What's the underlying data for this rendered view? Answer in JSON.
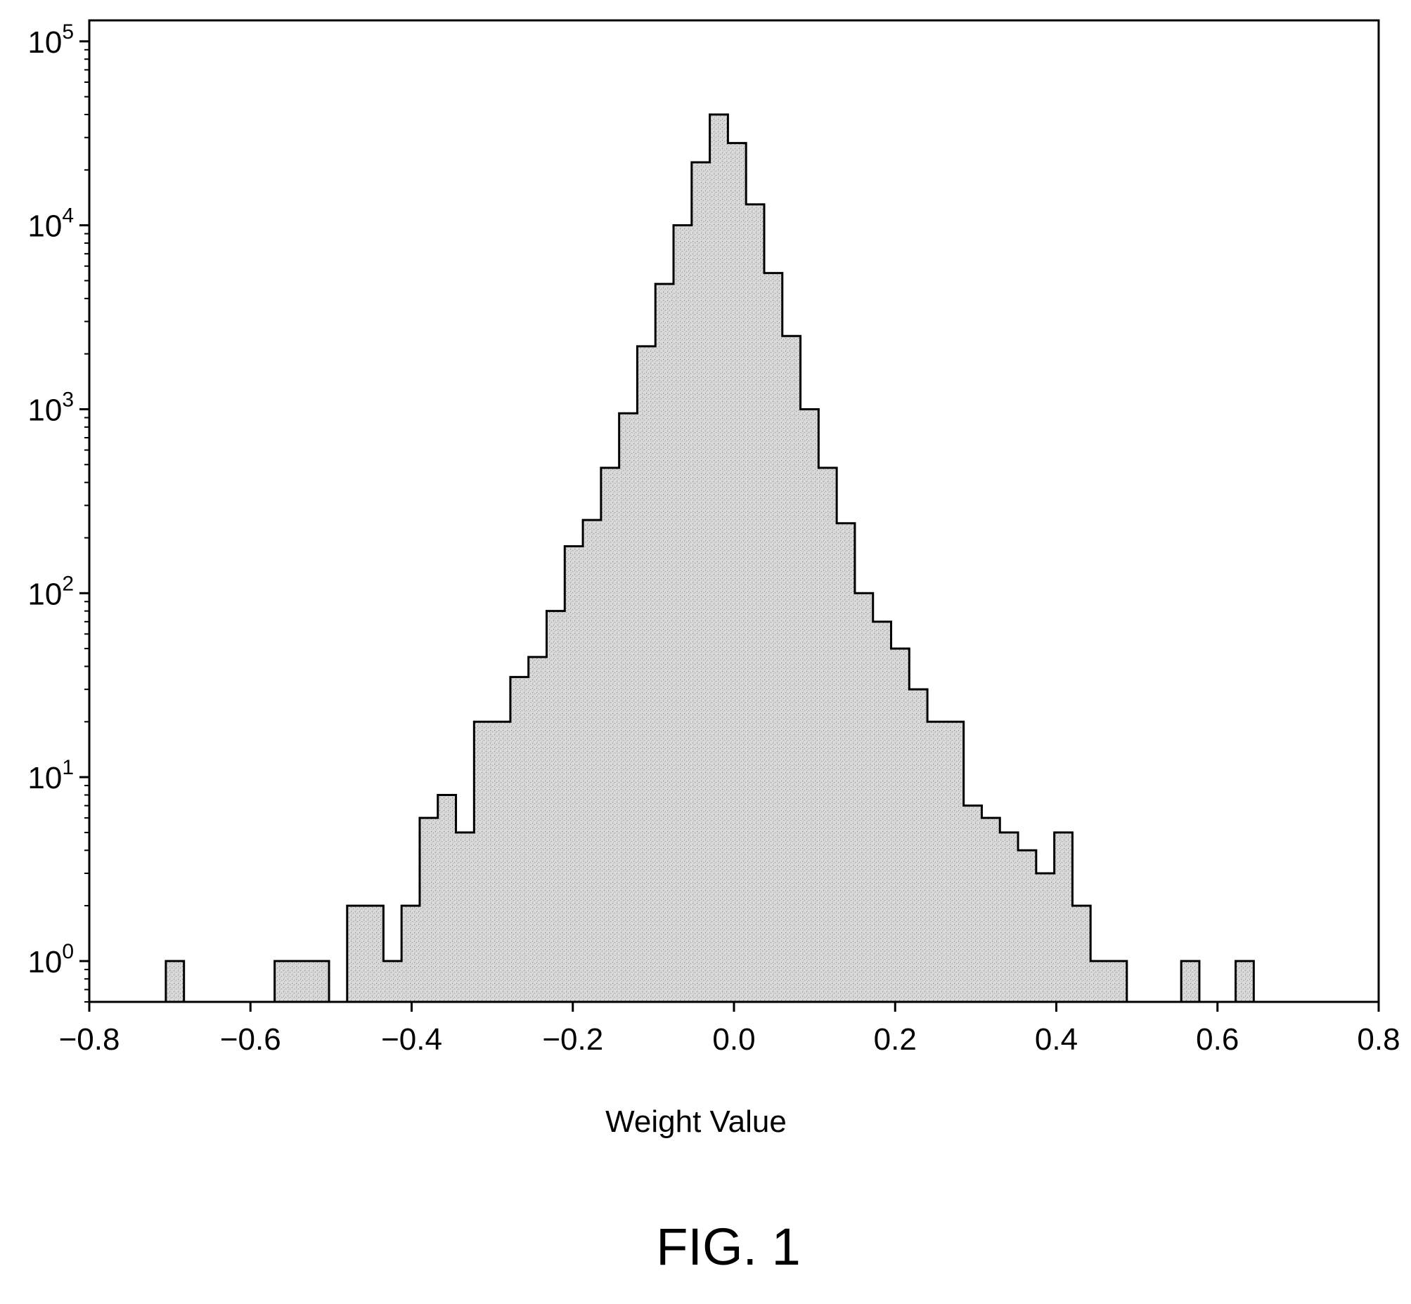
{
  "figure": {
    "caption": "FIG. 1"
  },
  "chart_data": {
    "type": "histogram",
    "title": "",
    "xlabel": "Weight Value",
    "ylabel": "",
    "xlim": [
      -0.8,
      0.8
    ],
    "ylim": [
      0.6,
      130000
    ],
    "yscale": "log",
    "grid": false,
    "legend": "none",
    "fill_color": "#d9d9d9",
    "edge_color": "#000000",
    "x_ticks": [
      {
        "value": -0.8,
        "label": "−0.8"
      },
      {
        "value": -0.6,
        "label": "−0.6"
      },
      {
        "value": -0.4,
        "label": "−0.4"
      },
      {
        "value": -0.2,
        "label": "−0.2"
      },
      {
        "value": 0.0,
        "label": "0.0"
      },
      {
        "value": 0.2,
        "label": "0.2"
      },
      {
        "value": 0.4,
        "label": "0.4"
      },
      {
        "value": 0.6,
        "label": "0.6"
      },
      {
        "value": 0.8,
        "label": "0.8"
      }
    ],
    "y_ticks": [
      {
        "value": 1,
        "base": "10",
        "exp": "0"
      },
      {
        "value": 10,
        "base": "10",
        "exp": "1"
      },
      {
        "value": 100,
        "base": "10",
        "exp": "2"
      },
      {
        "value": 1000,
        "base": "10",
        "exp": "3"
      },
      {
        "value": 10000,
        "base": "10",
        "exp": "4"
      },
      {
        "value": 100000,
        "base": "10",
        "exp": "5"
      }
    ],
    "bin_width": 0.0225,
    "bin_edges": [
      -0.705,
      -0.6825,
      -0.66,
      -0.6375,
      -0.615,
      -0.5925,
      -0.57,
      -0.5475,
      -0.525,
      -0.5025,
      -0.48,
      -0.4575,
      -0.435,
      -0.4125,
      -0.39,
      -0.3675,
      -0.345,
      -0.3225,
      -0.3,
      -0.2775,
      -0.255,
      -0.2325,
      -0.21,
      -0.1875,
      -0.165,
      -0.1425,
      -0.12,
      -0.0975,
      -0.075,
      -0.0525,
      -0.03,
      -0.0075,
      0.015,
      0.0375,
      0.06,
      0.0825,
      0.105,
      0.1275,
      0.15,
      0.1725,
      0.195,
      0.2175,
      0.24,
      0.2625,
      0.285,
      0.3075,
      0.33,
      0.3525,
      0.375,
      0.3975,
      0.42,
      0.4425,
      0.465,
      0.4875,
      0.51,
      0.5325,
      0.555,
      0.5775,
      0.6,
      0.6225,
      0.645
    ],
    "counts": [
      1,
      0,
      0,
      0,
      0,
      0,
      1,
      1,
      1,
      0,
      2,
      2,
      1,
      2,
      6,
      8,
      5,
      20,
      20,
      35,
      45,
      80,
      180,
      250,
      480,
      950,
      2200,
      4800,
      10000,
      22000,
      40000,
      28000,
      13000,
      5500,
      2500,
      1000,
      480,
      240,
      100,
      70,
      50,
      30,
      20,
      20,
      7,
      6,
      5,
      4,
      3,
      5,
      2,
      1,
      1,
      0,
      0,
      0,
      1,
      0,
      0,
      1
    ]
  }
}
